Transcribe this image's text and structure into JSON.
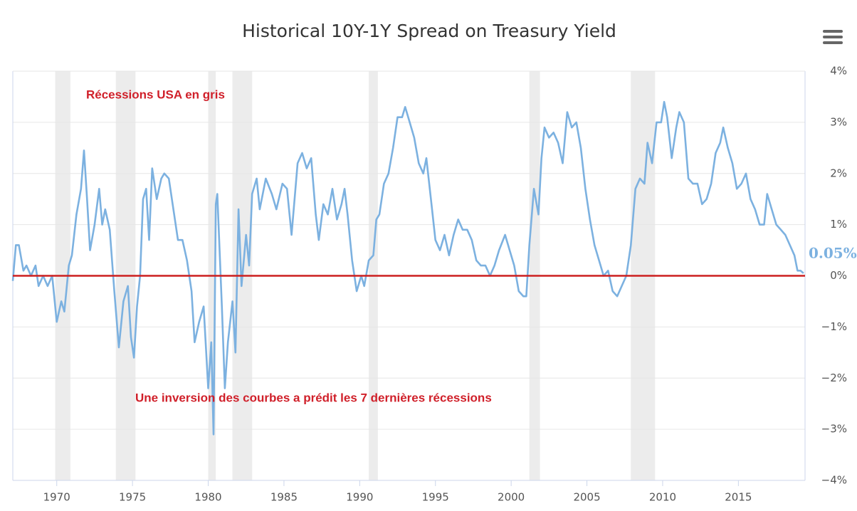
{
  "chart_data": {
    "type": "line",
    "title": "Historical 10Y-1Y Spread on Treasury Yield",
    "annotations": [
      "Récessions USA en gris",
      "Une inversion des courbes a prédit les 7 dernières récessions"
    ],
    "last_value_label": "0.05%",
    "recessions": [
      [
        1969.9,
        1970.9
      ],
      [
        1973.9,
        1975.2
      ],
      [
        1980.0,
        1980.5
      ],
      [
        1981.6,
        1982.9
      ],
      [
        1990.6,
        1991.2
      ],
      [
        2001.2,
        2001.9
      ],
      [
        2007.9,
        2009.5
      ]
    ],
    "recession_color": "#ececec",
    "zero_line_color": "#cc1f1f",
    "xlim": [
      1967.1,
      2019.4
    ],
    "xticks": [
      1970,
      1975,
      1980,
      1985,
      1990,
      1995,
      2000,
      2005,
      2010,
      2015
    ],
    "ylim": [
      -4,
      4
    ],
    "yticks": [
      {
        "value": 4,
        "label": "4%"
      },
      {
        "value": 3,
        "label": "3%"
      },
      {
        "value": 2,
        "label": "2%"
      },
      {
        "value": 1,
        "label": "1%"
      },
      {
        "value": 0,
        "label": "0%"
      },
      {
        "value": -1,
        "label": "−1%"
      },
      {
        "value": -2,
        "label": "−2%"
      },
      {
        "value": -3,
        "label": "−3%"
      },
      {
        "value": -4,
        "label": "−4%"
      }
    ],
    "grid": true,
    "series": [
      {
        "color": "#7cb1e0",
        "x": [
          1967.1,
          1967.3,
          1967.5,
          1967.8,
          1968.0,
          1968.3,
          1968.6,
          1968.8,
          1969.1,
          1969.4,
          1969.7,
          1970.0,
          1970.3,
          1970.5,
          1970.8,
          1971.0,
          1971.3,
          1971.6,
          1971.8,
          1972.0,
          1972.2,
          1972.5,
          1972.8,
          1973.0,
          1973.2,
          1973.5,
          1973.8,
          1974.1,
          1974.4,
          1974.7,
          1974.9,
          1975.1,
          1975.3,
          1975.5,
          1975.7,
          1975.9,
          1976.1,
          1976.3,
          1976.6,
          1976.9,
          1977.1,
          1977.4,
          1977.7,
          1978.0,
          1978.3,
          1978.6,
          1978.9,
          1979.1,
          1979.4,
          1979.7,
          1980.0,
          1980.2,
          1980.35,
          1980.5,
          1980.6,
          1980.9,
          1981.1,
          1981.3,
          1981.6,
          1981.8,
          1982.0,
          1982.2,
          1982.5,
          1982.7,
          1982.9,
          1983.2,
          1983.4,
          1983.8,
          1984.2,
          1984.5,
          1984.9,
          1985.2,
          1985.5,
          1985.9,
          1986.2,
          1986.5,
          1986.8,
          1987.1,
          1987.3,
          1987.6,
          1987.9,
          1988.2,
          1988.5,
          1988.8,
          1989.0,
          1989.2,
          1989.5,
          1989.8,
          1990.1,
          1990.3,
          1990.6,
          1990.9,
          1991.1,
          1991.3,
          1991.6,
          1991.9,
          1992.2,
          1992.5,
          1992.8,
          1993.0,
          1993.3,
          1993.6,
          1993.9,
          1994.2,
          1994.4,
          1994.7,
          1995.0,
          1995.3,
          1995.6,
          1995.9,
          1996.2,
          1996.5,
          1996.8,
          1997.1,
          1997.4,
          1997.7,
          1998.0,
          1998.3,
          1998.6,
          1998.9,
          1999.2,
          1999.6,
          1999.9,
          2000.2,
          2000.5,
          2000.8,
          2001.0,
          2001.2,
          2001.5,
          2001.8,
          2002.0,
          2002.2,
          2002.5,
          2002.8,
          2003.1,
          2003.4,
          2003.7,
          2004.0,
          2004.3,
          2004.6,
          2004.9,
          2005.2,
          2005.5,
          2005.8,
          2006.1,
          2006.4,
          2006.7,
          2007.0,
          2007.3,
          2007.6,
          2007.9,
          2008.2,
          2008.5,
          2008.8,
          2009.0,
          2009.3,
          2009.6,
          2009.9,
          2010.1,
          2010.3,
          2010.6,
          2010.9,
          2011.1,
          2011.4,
          2011.7,
          2012.0,
          2012.3,
          2012.6,
          2012.9,
          2013.2,
          2013.5,
          2013.8,
          2014.0,
          2014.3,
          2014.6,
          2014.9,
          2015.2,
          2015.5,
          2015.8,
          2016.1,
          2016.4,
          2016.7,
          2016.9,
          2017.2,
          2017.5,
          2017.8,
          2018.1,
          2018.4,
          2018.7,
          2018.9,
          2019.1,
          2019.3
        ],
        "values": [
          -0.1,
          0.6,
          0.6,
          0.1,
          0.2,
          0.0,
          0.2,
          -0.2,
          0.0,
          -0.2,
          0.0,
          -0.9,
          -0.5,
          -0.7,
          0.2,
          0.4,
          1.2,
          1.7,
          2.45,
          1.5,
          0.5,
          1.0,
          1.7,
          1.0,
          1.3,
          0.9,
          -0.3,
          -1.4,
          -0.5,
          -0.2,
          -1.2,
          -1.6,
          -0.6,
          0.0,
          1.5,
          1.7,
          0.7,
          2.1,
          1.5,
          1.9,
          2.0,
          1.9,
          1.3,
          0.7,
          0.7,
          0.3,
          -0.3,
          -1.3,
          -0.9,
          -0.6,
          -2.2,
          -1.3,
          -3.1,
          1.4,
          1.6,
          -0.6,
          -2.2,
          -1.3,
          -0.5,
          -1.5,
          1.3,
          -0.2,
          0.8,
          0.2,
          1.6,
          1.9,
          1.3,
          1.9,
          1.6,
          1.3,
          1.8,
          1.7,
          0.8,
          2.2,
          2.4,
          2.1,
          2.3,
          1.2,
          0.7,
          1.4,
          1.2,
          1.7,
          1.1,
          1.4,
          1.7,
          1.2,
          0.3,
          -0.3,
          0.0,
          -0.2,
          0.3,
          0.4,
          1.1,
          1.2,
          1.8,
          2.0,
          2.5,
          3.1,
          3.1,
          3.3,
          3.0,
          2.7,
          2.2,
          2.0,
          2.3,
          1.5,
          0.7,
          0.5,
          0.8,
          0.4,
          0.8,
          1.1,
          0.9,
          0.9,
          0.7,
          0.3,
          0.2,
          0.2,
          0.0,
          0.2,
          0.5,
          0.8,
          0.5,
          0.2,
          -0.3,
          -0.4,
          -0.4,
          0.6,
          1.7,
          1.2,
          2.3,
          2.9,
          2.7,
          2.8,
          2.6,
          2.2,
          3.2,
          2.9,
          3.0,
          2.5,
          1.7,
          1.1,
          0.6,
          0.3,
          0.0,
          0.1,
          -0.3,
          -0.4,
          -0.2,
          0.0,
          0.6,
          1.7,
          1.9,
          1.8,
          2.6,
          2.2,
          3.0,
          3.0,
          3.4,
          3.1,
          2.3,
          2.9,
          3.2,
          3.0,
          1.9,
          1.8,
          1.8,
          1.4,
          1.5,
          1.8,
          2.4,
          2.6,
          2.9,
          2.5,
          2.2,
          1.7,
          1.8,
          2.0,
          1.5,
          1.3,
          1.0,
          1.0,
          1.6,
          1.3,
          1.0,
          0.9,
          0.8,
          0.6,
          0.4,
          0.1,
          0.1,
          0.05
        ]
      }
    ]
  }
}
